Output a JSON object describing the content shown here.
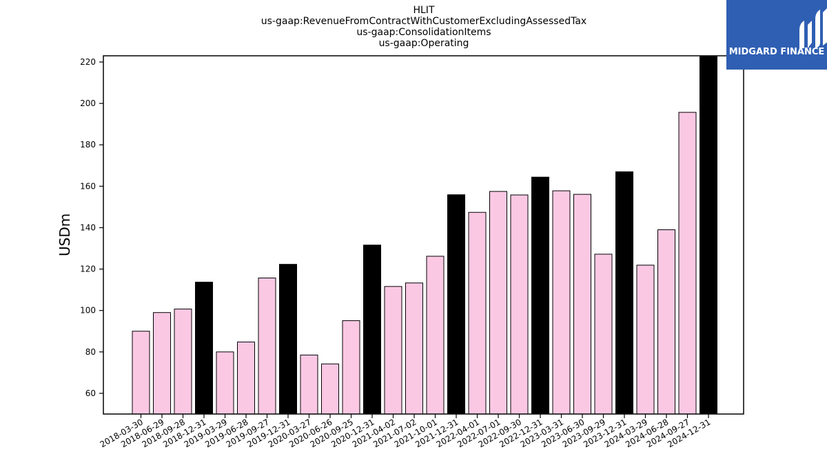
{
  "titles": {
    "line1": "HLIT",
    "line2": "us-gaap:RevenueFromContractWithCustomerExcludingAssessedTax",
    "line3": "us-gaap:ConsolidationItems",
    "line4": "us-gaap:Operating"
  },
  "logo": {
    "text": "MIDGARD FINANCE",
    "background": "#2f5fb3"
  },
  "colors": {
    "quarter_bar": "#fbc8e3",
    "year_end_bar": "#000000",
    "edge": "#000000"
  },
  "chart_data": {
    "type": "bar",
    "ylabel": "USDm",
    "xlabel": "",
    "ylim": [
      50,
      223
    ],
    "yticks": [
      60,
      80,
      100,
      120,
      140,
      160,
      180,
      200,
      220
    ],
    "grid": false,
    "categories": [
      "2018-03-30",
      "2018-06-29",
      "2018-09-28",
      "2018-12-31",
      "2019-03-29",
      "2019-06-28",
      "2019-09-27",
      "2019-12-31",
      "2020-03-27",
      "2020-06-26",
      "2020-09-25",
      "2020-12-31",
      "2021-04-02",
      "2021-07-02",
      "2021-10-01",
      "2021-12-31",
      "2022-04-01",
      "2022-07-01",
      "2022-09-30",
      "2022-12-31",
      "2023-03-31",
      "2023-06-30",
      "2023-09-29",
      "2023-12-31",
      "2024-03-29",
      "2024-06-28",
      "2024-09-27",
      "2024-12-31"
    ],
    "values": [
      90,
      99,
      100.7,
      113.7,
      80,
      84.8,
      115.7,
      122.3,
      78.5,
      74.2,
      95.1,
      131.6,
      111.6,
      113.3,
      126.2,
      155.9,
      147.4,
      157.5,
      155.8,
      164.4,
      157.8,
      156.1,
      127.2,
      167,
      121.9,
      139,
      195.7,
      223
    ],
    "year_end": [
      false,
      false,
      false,
      true,
      false,
      false,
      false,
      true,
      false,
      false,
      false,
      true,
      false,
      false,
      false,
      true,
      false,
      false,
      false,
      true,
      false,
      false,
      false,
      true,
      false,
      false,
      false,
      true
    ]
  }
}
